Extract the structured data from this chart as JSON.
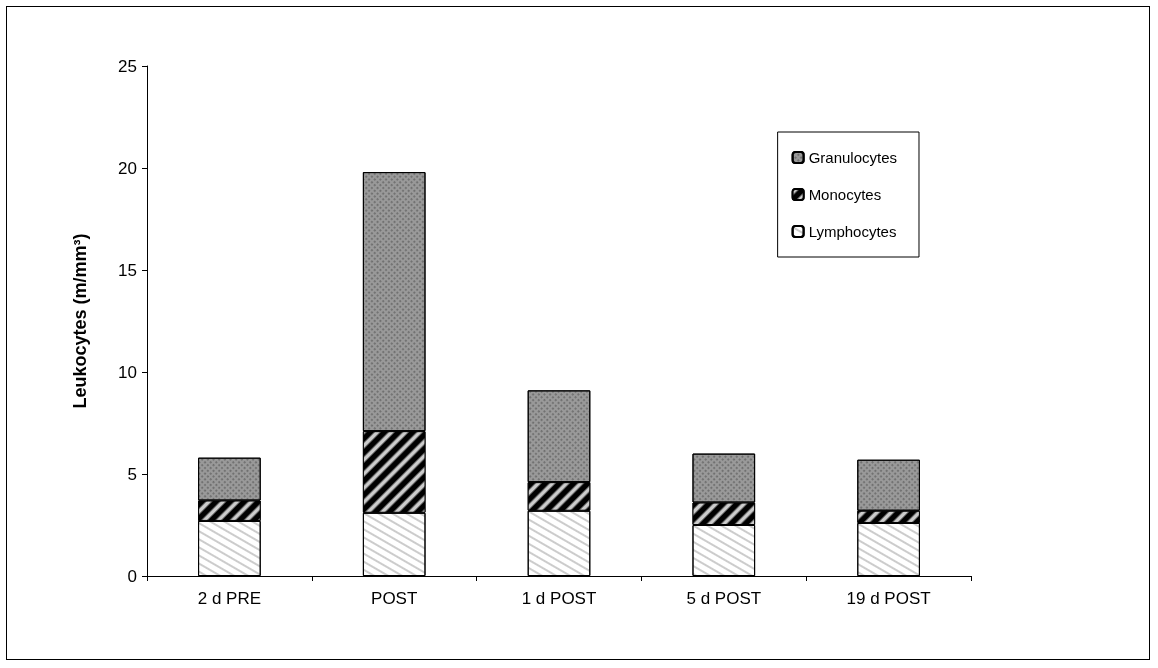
{
  "chart_data": {
    "type": "bar",
    "stacked": true,
    "ylabel": "Leukocytes (m/mm³)",
    "categories": [
      "2 d PRE",
      "POST",
      "1 d POST",
      "5 d POST",
      "19 d POST"
    ],
    "series": [
      {
        "name": "Lymphocytes",
        "color": "#ffffff",
        "values": [
          2.7,
          3.1,
          3.2,
          2.5,
          2.6
        ]
      },
      {
        "name": "Monocytes",
        "color": "#000000",
        "values": [
          1.0,
          4.0,
          1.4,
          1.1,
          0.6
        ]
      },
      {
        "name": "Granulocytes",
        "color": "#999999",
        "values": [
          2.1,
          12.7,
          4.5,
          2.4,
          2.5
        ]
      }
    ],
    "ylim": [
      0,
      25
    ],
    "yticks": [
      0,
      5,
      10,
      15,
      20,
      25
    ],
    "grid": false,
    "legend": "top right"
  }
}
